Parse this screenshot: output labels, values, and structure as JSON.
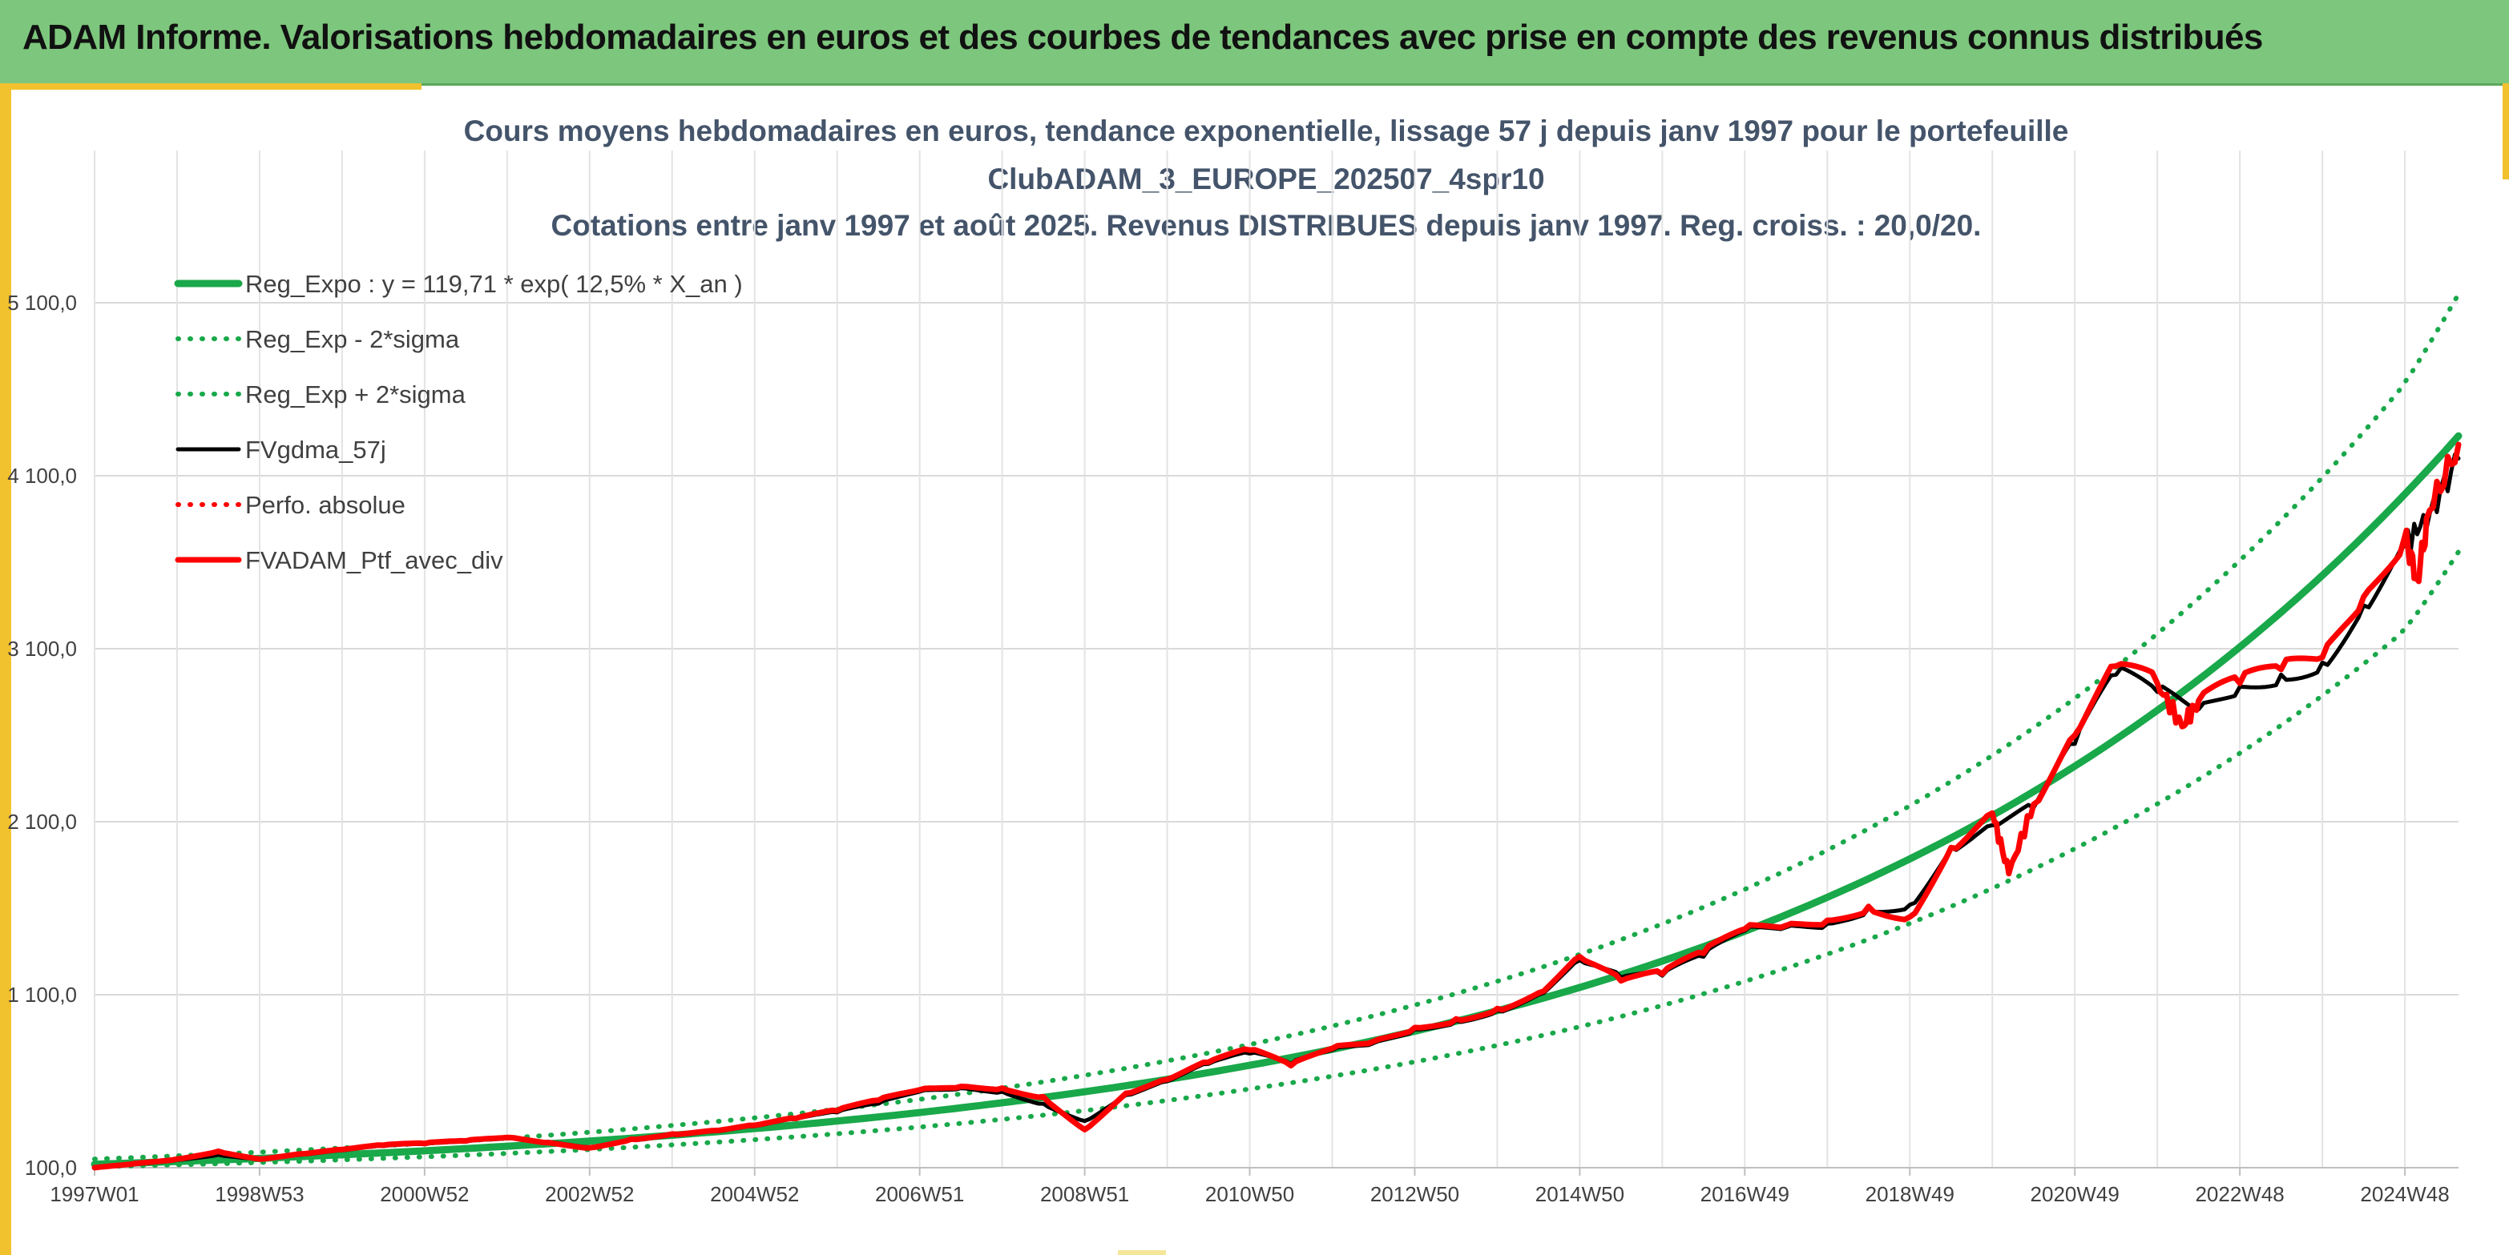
{
  "header": {
    "title": "ADAM Informe. Valorisations hebdomadaires en euros et des courbes de tendances avec prise en compte des revenus connus distribués"
  },
  "colors": {
    "banner": "#7dc67d",
    "accent": "#f2c12e",
    "trend": "#19a84a",
    "band": "#19a84a",
    "smoothed": "#000000",
    "portfolio": "#ff0000",
    "title_text": "#44546a"
  },
  "chart_data": {
    "type": "line",
    "title": [
      "Cours moyens hebdomadaires en euros, tendance exponentielle, lissage 57 j depuis janv 1997 pour le portefeuille",
      "ClubADAM_3_EUROPE_202507_4spr10",
      "Cotations entre janv 1997 et août 2025. Revenus DISTRIBUES depuis janv 1997. Reg. croiss. : 20,0/20."
    ],
    "x_tick_labels": [
      "1997W01",
      "1998W53",
      "2000W52",
      "2002W52",
      "2004W52",
      "2006W51",
      "2008W51",
      "2010W50",
      "2012W50",
      "2014W50",
      "2016W49",
      "2018W49",
      "2020W49",
      "2022W48",
      "2024W48"
    ],
    "x_tick_years": [
      1997.0,
      1999.0,
      2001.0,
      2003.0,
      2005.0,
      2007.0,
      2009.0,
      2011.0,
      2013.0,
      2015.0,
      2017.0,
      2019.0,
      2021.0,
      2023.0,
      2025.0
    ],
    "y_tick_labels": [
      "100,0",
      "1 100,0",
      "2 100,0",
      "3 100,0",
      "4 100,0",
      "5 100,0"
    ],
    "y_tick_values": [
      100,
      1100,
      2100,
      3100,
      4100,
      5100
    ],
    "ylim": [
      100,
      5100
    ],
    "xlim": [
      1997.0,
      2025.65
    ],
    "grid": true,
    "legend_position": "top-left",
    "legend": [
      {
        "label": "Reg_Expo : y = 119,71 * exp( 12,5% *  X_an )",
        "style": "solid-thick",
        "color": "#19a84a"
      },
      {
        "label": "Reg_Exp - 2*sigma",
        "style": "dotted",
        "color": "#19a84a"
      },
      {
        "label": "Reg_Exp + 2*sigma",
        "style": "dotted",
        "color": "#19a84a"
      },
      {
        "label": "FVgdma_57j",
        "style": "solid",
        "color": "#000000"
      },
      {
        "label": "Perfo. absolue",
        "style": "dotted",
        "color": "#ff0000"
      },
      {
        "label": "FVADAM_Ptf_avec_div",
        "style": "solid-thick",
        "color": "#ff0000"
      }
    ],
    "series": [
      {
        "name": "Reg_Expo : y = 119,71 * exp( 12,5% *  X_an )",
        "x": [
          1997.0,
          1999.0,
          2001.0,
          2003.0,
          2005.0,
          2007.0,
          2009.0,
          2011.0,
          2013.0,
          2015.0,
          2017.0,
          2019.0,
          2020.0,
          2021.0,
          2022.0,
          2023.0,
          2024.0,
          2025.0,
          2025.65
        ],
        "y": [
          120,
          154,
          198,
          254,
          326,
          419,
          539,
          692,
          889,
          1142,
          1467,
          1885,
          2136,
          2421,
          2744,
          3110,
          3524,
          3994,
          4330
        ]
      },
      {
        "name": "Reg_Exp - 2*sigma",
        "x": [
          1997.0,
          1999.0,
          2001.0,
          2003.0,
          2005.0,
          2007.0,
          2009.0,
          2011.0,
          2013.0,
          2015.0,
          2017.0,
          2019.0,
          2020.0,
          2021.0,
          2022.0,
          2023.0,
          2024.0,
          2025.0,
          2025.65
        ],
        "y": [
          105,
          130,
          163,
          205,
          262,
          335,
          430,
          555,
          712,
          915,
          1177,
          1512,
          1715,
          1944,
          2203,
          2496,
          2829,
          3207,
          3660
        ]
      },
      {
        "name": "Reg_Exp + 2*sigma",
        "x": [
          1997.0,
          1999.0,
          2001.0,
          2003.0,
          2005.0,
          2007.0,
          2009.0,
          2011.0,
          2013.0,
          2015.0,
          2017.0,
          2019.0,
          2020.0,
          2021.0,
          2022.0,
          2023.0,
          2024.0,
          2025.0,
          2025.65
        ],
        "y": [
          150,
          190,
          241,
          305,
          388,
          495,
          634,
          812,
          1040,
          1333,
          1709,
          2192,
          2483,
          2813,
          3187,
          3610,
          4090,
          4633,
          5150
        ]
      },
      {
        "name": "FVgdma_57j",
        "x": [
          1997.0,
          1997.5,
          1998.0,
          1998.5,
          1999.0,
          1999.5,
          2000.0,
          2000.5,
          2001.0,
          2001.5,
          2002.0,
          2002.5,
          2003.0,
          2003.5,
          2004.0,
          2004.5,
          2005.0,
          2005.5,
          2006.0,
          2006.5,
          2007.0,
          2007.5,
          2008.0,
          2008.5,
          2009.0,
          2009.5,
          2010.0,
          2010.5,
          2011.0,
          2011.5,
          2012.0,
          2012.5,
          2013.0,
          2013.5,
          2014.0,
          2014.5,
          2015.0,
          2015.5,
          2016.0,
          2016.5,
          2017.0,
          2017.5,
          2018.0,
          2018.5,
          2019.0,
          2019.5,
          2020.0,
          2020.5,
          2021.0,
          2021.5,
          2022.0,
          2022.5,
          2023.0,
          2023.5,
          2024.0,
          2024.5,
          2025.0,
          2025.3,
          2025.65
        ],
        "y": [
          100,
          120,
          145,
          175,
          150,
          175,
          200,
          225,
          235,
          250,
          270,
          250,
          220,
          260,
          290,
          310,
          340,
          380,
          420,
          470,
          540,
          560,
          540,
          470,
          370,
          520,
          600,
          700,
          760,
          700,
          780,
          820,
          900,
          950,
          1010,
          1100,
          1300,
          1200,
          1210,
          1320,
          1470,
          1490,
          1510,
          1600,
          1620,
          1950,
          2080,
          2180,
          2550,
          2950,
          2850,
          2750,
          2880,
          2950,
          3020,
          3350,
          3700,
          3880,
          4200
        ]
      },
      {
        "name": "Perfo. absolue",
        "x": [
          1997.0,
          2025.65
        ],
        "y": [
          100,
          4210
        ]
      },
      {
        "name": "FVADAM_Ptf_avec_div",
        "x": [
          1997.0,
          1997.5,
          1998.0,
          1998.5,
          1999.0,
          1999.5,
          2000.0,
          2000.5,
          2001.0,
          2001.5,
          2002.0,
          2002.5,
          2003.0,
          2003.5,
          2004.0,
          2004.5,
          2005.0,
          2005.5,
          2006.0,
          2006.5,
          2007.0,
          2007.5,
          2008.0,
          2008.5,
          2009.0,
          2009.5,
          2010.0,
          2010.5,
          2011.0,
          2011.5,
          2012.0,
          2012.5,
          2013.0,
          2013.5,
          2014.0,
          2014.5,
          2015.0,
          2015.5,
          2016.0,
          2016.5,
          2017.0,
          2017.5,
          2018.0,
          2018.5,
          2019.0,
          2019.5,
          2020.0,
          2020.2,
          2020.5,
          2021.0,
          2021.5,
          2022.0,
          2022.3,
          2022.5,
          2023.0,
          2023.5,
          2024.0,
          2024.5,
          2025.0,
          2025.15,
          2025.3,
          2025.65
        ],
        "y": [
          100,
          125,
          150,
          195,
          150,
          180,
          205,
          230,
          240,
          255,
          275,
          245,
          215,
          265,
          295,
          315,
          345,
          385,
          430,
          490,
          550,
          570,
          560,
          510,
          320,
          530,
          610,
          710,
          780,
          690,
          790,
          830,
          910,
          960,
          1020,
          1110,
          1320,
          1180,
          1220,
          1340,
          1480,
          1500,
          1530,
          1610,
          1550,
          1950,
          2150,
          1800,
          2200,
          2600,
          3000,
          2900,
          2650,
          2800,
          2900,
          2980,
          3050,
          3400,
          3750,
          3500,
          3900,
          4280
        ]
      }
    ]
  }
}
